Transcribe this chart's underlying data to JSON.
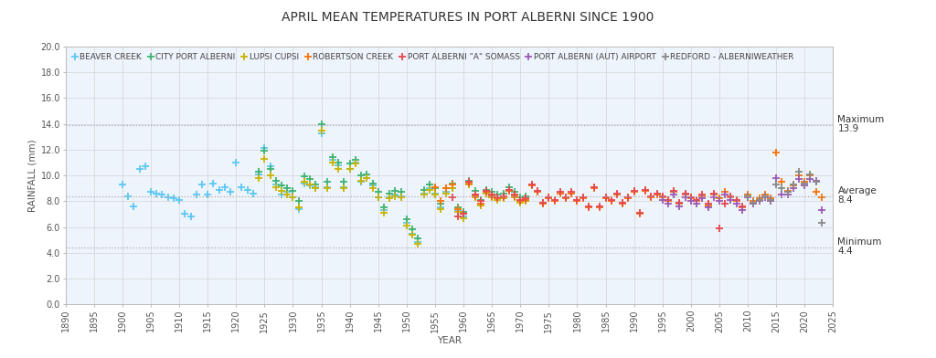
{
  "title": "APRIL MEAN TEMPERATURES IN PORT ALBERNI SINCE 1900",
  "xlabel": "YEAR",
  "ylabel": "RAINFALL (mm)",
  "ylim": [
    0.0,
    20.0
  ],
  "xlim": [
    1890,
    2025
  ],
  "yticks": [
    0.0,
    2.0,
    4.0,
    6.0,
    8.0,
    10.0,
    12.0,
    14.0,
    16.0,
    18.0,
    20.0
  ],
  "xticks": [
    1890,
    1895,
    1900,
    1905,
    1910,
    1915,
    1920,
    1925,
    1930,
    1935,
    1940,
    1945,
    1950,
    1955,
    1960,
    1965,
    1970,
    1975,
    1980,
    1985,
    1990,
    1995,
    2000,
    2005,
    2010,
    2015,
    2020,
    2025
  ],
  "hlines": [
    {
      "y": 13.9,
      "label1": "Maximum",
      "label2": "13.9"
    },
    {
      "y": 8.4,
      "label1": "Average",
      "label2": "8.4"
    },
    {
      "y": 4.4,
      "label1": "Minimum",
      "label2": "4.4"
    }
  ],
  "series": [
    {
      "name": "BEAVER CREEK",
      "color": "#5bc8f5",
      "data": [
        [
          1900,
          9.3
        ],
        [
          1901,
          8.4
        ],
        [
          1902,
          7.6
        ],
        [
          1903,
          10.5
        ],
        [
          1904,
          10.7
        ],
        [
          1905,
          8.7
        ],
        [
          1906,
          8.6
        ],
        [
          1907,
          8.5
        ],
        [
          1908,
          8.3
        ],
        [
          1909,
          8.2
        ],
        [
          1910,
          8.1
        ],
        [
          1911,
          7.0
        ],
        [
          1912,
          6.8
        ],
        [
          1913,
          8.5
        ],
        [
          1914,
          9.3
        ],
        [
          1915,
          8.5
        ],
        [
          1916,
          9.4
        ],
        [
          1917,
          8.9
        ],
        [
          1918,
          9.1
        ],
        [
          1919,
          8.7
        ],
        [
          1920,
          11.0
        ],
        [
          1921,
          9.1
        ],
        [
          1922,
          8.9
        ],
        [
          1923,
          8.6
        ],
        [
          1924,
          10.1
        ],
        [
          1925,
          12.1
        ],
        [
          1926,
          10.7
        ],
        [
          1927,
          9.3
        ],
        [
          1928,
          8.5
        ],
        [
          1929,
          8.7
        ],
        [
          1930,
          8.3
        ],
        [
          1931,
          7.4
        ],
        [
          1932,
          9.4
        ],
        [
          1933,
          9.2
        ],
        [
          1934,
          9.1
        ],
        [
          1935,
          13.3
        ],
        [
          1936,
          9.1
        ],
        [
          1937,
          11.2
        ],
        [
          1938,
          10.8
        ],
        [
          1939,
          9.1
        ],
        [
          1940,
          10.5
        ],
        [
          1941,
          11.0
        ],
        [
          1942,
          9.5
        ],
        [
          1943,
          9.8
        ],
        [
          1944,
          9.2
        ],
        [
          1945,
          8.3
        ],
        [
          1946,
          7.3
        ],
        [
          1947,
          8.3
        ],
        [
          1948,
          8.5
        ],
        [
          1949,
          8.4
        ],
        [
          1950,
          6.3
        ],
        [
          1951,
          5.5
        ],
        [
          1952,
          4.8
        ],
        [
          1953,
          8.6
        ],
        [
          1954,
          9.0
        ],
        [
          1955,
          8.6
        ],
        [
          1956,
          7.5
        ],
        [
          1957,
          8.7
        ],
        [
          1958,
          9.0
        ],
        [
          1959,
          7.3
        ],
        [
          1960,
          6.8
        ],
        [
          1961,
          9.5
        ],
        [
          1962,
          8.5
        ],
        [
          1963,
          7.8
        ],
        [
          1964,
          8.7
        ],
        [
          1965,
          8.4
        ],
        [
          1966,
          8.2
        ],
        [
          1967,
          8.3
        ],
        [
          1968,
          8.9
        ],
        [
          1969,
          8.4
        ],
        [
          1970,
          8.0
        ],
        [
          1971,
          8.1
        ],
        [
          1972,
          9.3
        ],
        [
          1973,
          8.8
        ],
        [
          1974,
          7.9
        ]
      ]
    },
    {
      "name": "CITY PORT ALBERNI",
      "color": "#3cb371",
      "data": [
        [
          1924,
          10.3
        ],
        [
          1925,
          11.9
        ],
        [
          1926,
          10.5
        ],
        [
          1927,
          9.6
        ],
        [
          1928,
          9.2
        ],
        [
          1929,
          9.0
        ],
        [
          1930,
          8.8
        ],
        [
          1931,
          8.0
        ],
        [
          1932,
          9.9
        ],
        [
          1933,
          9.7
        ],
        [
          1934,
          9.3
        ],
        [
          1935,
          14.0
        ],
        [
          1936,
          9.5
        ],
        [
          1937,
          11.4
        ],
        [
          1938,
          11.0
        ],
        [
          1939,
          9.5
        ],
        [
          1940,
          10.9
        ],
        [
          1941,
          11.2
        ],
        [
          1942,
          10.0
        ],
        [
          1943,
          10.1
        ],
        [
          1944,
          9.4
        ],
        [
          1945,
          8.7
        ],
        [
          1946,
          7.5
        ],
        [
          1947,
          8.6
        ],
        [
          1948,
          8.8
        ],
        [
          1949,
          8.7
        ],
        [
          1950,
          6.6
        ],
        [
          1951,
          5.8
        ],
        [
          1952,
          5.1
        ],
        [
          1953,
          8.9
        ],
        [
          1954,
          9.3
        ],
        [
          1955,
          9.0
        ],
        [
          1956,
          7.8
        ],
        [
          1957,
          9.0
        ],
        [
          1958,
          9.4
        ],
        [
          1959,
          7.5
        ],
        [
          1960,
          7.2
        ],
        [
          1961,
          9.6
        ],
        [
          1962,
          8.8
        ],
        [
          1963,
          8.1
        ],
        [
          1964,
          8.9
        ],
        [
          1965,
          8.7
        ],
        [
          1966,
          8.5
        ],
        [
          1967,
          8.6
        ],
        [
          1968,
          9.1
        ],
        [
          1969,
          8.7
        ],
        [
          1970,
          8.3
        ],
        [
          1971,
          8.4
        ]
      ]
    },
    {
      "name": "LUPSI CUPSI",
      "color": "#c8b400",
      "data": [
        [
          1924,
          9.8
        ],
        [
          1925,
          11.3
        ],
        [
          1926,
          10.0
        ],
        [
          1927,
          9.1
        ],
        [
          1928,
          8.8
        ],
        [
          1929,
          8.5
        ],
        [
          1930,
          8.3
        ],
        [
          1931,
          7.5
        ],
        [
          1932,
          9.5
        ],
        [
          1933,
          9.3
        ],
        [
          1934,
          9.0
        ],
        [
          1935,
          13.5
        ],
        [
          1936,
          9.0
        ],
        [
          1937,
          11.0
        ],
        [
          1938,
          10.5
        ],
        [
          1939,
          9.0
        ],
        [
          1940,
          10.5
        ],
        [
          1941,
          10.9
        ],
        [
          1942,
          9.6
        ],
        [
          1943,
          9.8
        ],
        [
          1944,
          9.0
        ],
        [
          1945,
          8.3
        ],
        [
          1946,
          7.1
        ],
        [
          1947,
          8.2
        ],
        [
          1948,
          8.4
        ],
        [
          1949,
          8.3
        ],
        [
          1950,
          6.1
        ],
        [
          1951,
          5.4
        ],
        [
          1952,
          4.7
        ],
        [
          1953,
          8.5
        ],
        [
          1954,
          8.9
        ],
        [
          1955,
          8.5
        ],
        [
          1956,
          7.4
        ],
        [
          1957,
          8.6
        ],
        [
          1958,
          9.0
        ],
        [
          1959,
          7.2
        ],
        [
          1960,
          6.7
        ],
        [
          1961,
          9.3
        ],
        [
          1962,
          8.3
        ],
        [
          1963,
          7.7
        ],
        [
          1964,
          8.6
        ],
        [
          1965,
          8.3
        ],
        [
          1966,
          8.1
        ],
        [
          1967,
          8.2
        ],
        [
          1968,
          8.8
        ],
        [
          1969,
          8.3
        ],
        [
          1970,
          7.9
        ],
        [
          1971,
          8.0
        ]
      ]
    },
    {
      "name": "ROBERTSON CREEK",
      "color": "#f97306",
      "data": [
        [
          1955,
          9.1
        ],
        [
          1956,
          8.0
        ],
        [
          1957,
          9.0
        ],
        [
          1958,
          9.3
        ],
        [
          1959,
          7.4
        ],
        [
          1960,
          7.0
        ],
        [
          1961,
          9.4
        ],
        [
          1962,
          8.4
        ],
        [
          1963,
          7.8
        ],
        [
          1964,
          8.7
        ],
        [
          1965,
          8.4
        ],
        [
          1966,
          8.2
        ],
        [
          1967,
          8.3
        ],
        [
          1968,
          8.8
        ],
        [
          1969,
          8.4
        ],
        [
          1970,
          8.0
        ],
        [
          1971,
          8.1
        ],
        [
          1972,
          9.2
        ],
        [
          1973,
          8.7
        ],
        [
          1974,
          7.8
        ],
        [
          1975,
          8.2
        ],
        [
          1976,
          8.0
        ],
        [
          1977,
          8.6
        ],
        [
          1978,
          8.2
        ],
        [
          1979,
          8.6
        ],
        [
          1980,
          8.0
        ],
        [
          1981,
          8.2
        ],
        [
          1982,
          7.5
        ],
        [
          1983,
          9.0
        ],
        [
          1984,
          7.5
        ],
        [
          1985,
          8.2
        ],
        [
          1986,
          8.0
        ],
        [
          1987,
          8.5
        ],
        [
          1988,
          7.8
        ],
        [
          1989,
          8.2
        ],
        [
          1990,
          8.7
        ],
        [
          1991,
          7.0
        ],
        [
          1992,
          8.8
        ],
        [
          1993,
          8.3
        ],
        [
          1994,
          8.5
        ],
        [
          1995,
          8.3
        ],
        [
          1996,
          8.0
        ],
        [
          1997,
          8.7
        ],
        [
          1998,
          7.8
        ],
        [
          1999,
          8.5
        ],
        [
          2000,
          8.2
        ],
        [
          2001,
          8.0
        ],
        [
          2002,
          8.4
        ],
        [
          2003,
          7.7
        ],
        [
          2004,
          8.5
        ],
        [
          2005,
          8.2
        ],
        [
          2006,
          8.7
        ],
        [
          2007,
          8.3
        ],
        [
          2008,
          8.0
        ],
        [
          2009,
          7.5
        ],
        [
          2010,
          8.5
        ],
        [
          2011,
          8.0
        ],
        [
          2012,
          8.2
        ],
        [
          2013,
          8.5
        ],
        [
          2014,
          8.2
        ],
        [
          2015,
          11.8
        ],
        [
          2016,
          9.5
        ],
        [
          2017,
          8.8
        ],
        [
          2018,
          9.2
        ],
        [
          2019,
          10.0
        ],
        [
          2020,
          9.5
        ],
        [
          2021,
          10.0
        ],
        [
          2022,
          8.7
        ],
        [
          2023,
          8.3
        ]
      ]
    },
    {
      "name": "PORT ALBERNI \"A\" SOMASS",
      "color": "#e8474c",
      "data": [
        [
          1958,
          8.3
        ],
        [
          1959,
          6.8
        ],
        [
          1960,
          7.0
        ],
        [
          1961,
          9.5
        ],
        [
          1962,
          8.5
        ],
        [
          1963,
          8.0
        ],
        [
          1964,
          8.8
        ],
        [
          1965,
          8.5
        ],
        [
          1966,
          8.3
        ],
        [
          1967,
          8.4
        ],
        [
          1968,
          8.9
        ],
        [
          1969,
          8.5
        ],
        [
          1970,
          8.1
        ],
        [
          1971,
          8.2
        ],
        [
          1972,
          9.3
        ],
        [
          1973,
          8.8
        ],
        [
          1974,
          7.9
        ],
        [
          1975,
          8.3
        ],
        [
          1976,
          8.1
        ],
        [
          1977,
          8.7
        ],
        [
          1978,
          8.3
        ],
        [
          1979,
          8.7
        ],
        [
          1980,
          8.1
        ],
        [
          1981,
          8.3
        ],
        [
          1982,
          7.6
        ],
        [
          1983,
          9.1
        ],
        [
          1984,
          7.6
        ],
        [
          1985,
          8.3
        ],
        [
          1986,
          8.1
        ],
        [
          1987,
          8.6
        ],
        [
          1988,
          7.9
        ],
        [
          1989,
          8.3
        ],
        [
          1990,
          8.8
        ],
        [
          1991,
          7.1
        ],
        [
          1992,
          8.9
        ],
        [
          1993,
          8.4
        ],
        [
          1994,
          8.6
        ],
        [
          1995,
          8.4
        ],
        [
          1996,
          8.1
        ],
        [
          1997,
          8.8
        ],
        [
          1998,
          7.9
        ],
        [
          1999,
          8.6
        ],
        [
          2000,
          8.3
        ],
        [
          2001,
          8.1
        ],
        [
          2002,
          8.5
        ],
        [
          2003,
          7.8
        ],
        [
          2004,
          8.6
        ],
        [
          2005,
          5.9
        ],
        [
          2006,
          7.8
        ],
        [
          2007,
          8.4
        ],
        [
          2008,
          8.1
        ],
        [
          2009,
          7.6
        ]
      ]
    },
    {
      "name": "PORT ALBERNI (AUT) AIRPORT",
      "color": "#9b59b6",
      "data": [
        [
          1995,
          8.1
        ],
        [
          1996,
          7.8
        ],
        [
          1997,
          8.5
        ],
        [
          1998,
          7.6
        ],
        [
          1999,
          8.3
        ],
        [
          2000,
          8.0
        ],
        [
          2001,
          7.8
        ],
        [
          2002,
          8.2
        ],
        [
          2003,
          7.5
        ],
        [
          2004,
          8.3
        ],
        [
          2005,
          8.0
        ],
        [
          2006,
          8.5
        ],
        [
          2007,
          8.1
        ],
        [
          2008,
          7.8
        ],
        [
          2009,
          7.3
        ],
        [
          2010,
          8.3
        ],
        [
          2011,
          7.8
        ],
        [
          2012,
          8.0
        ],
        [
          2013,
          8.3
        ],
        [
          2014,
          8.0
        ],
        [
          2015,
          9.8
        ],
        [
          2016,
          8.5
        ],
        [
          2017,
          8.5
        ],
        [
          2018,
          9.0
        ],
        [
          2019,
          9.7
        ],
        [
          2020,
          9.2
        ],
        [
          2021,
          9.7
        ],
        [
          2022,
          9.6
        ],
        [
          2023,
          7.3
        ]
      ]
    },
    {
      "name": "REDFORD - ALBERNIWEATHER",
      "color": "#888888",
      "data": [
        [
          2010,
          8.4
        ],
        [
          2011,
          7.9
        ],
        [
          2012,
          8.1
        ],
        [
          2013,
          8.4
        ],
        [
          2014,
          8.1
        ],
        [
          2015,
          9.3
        ],
        [
          2016,
          9.0
        ],
        [
          2017,
          8.7
        ],
        [
          2018,
          9.3
        ],
        [
          2019,
          10.3
        ],
        [
          2020,
          9.4
        ],
        [
          2021,
          10.1
        ],
        [
          2022,
          9.5
        ],
        [
          2023,
          6.3
        ]
      ]
    }
  ],
  "bg_color": "#ffffff",
  "plot_bg_color": "#eef4fb",
  "title_fontsize": 10,
  "axis_label_fontsize": 7.5,
  "tick_fontsize": 7,
  "legend_fontsize": 6.5,
  "annot_fontsize": 7.5
}
